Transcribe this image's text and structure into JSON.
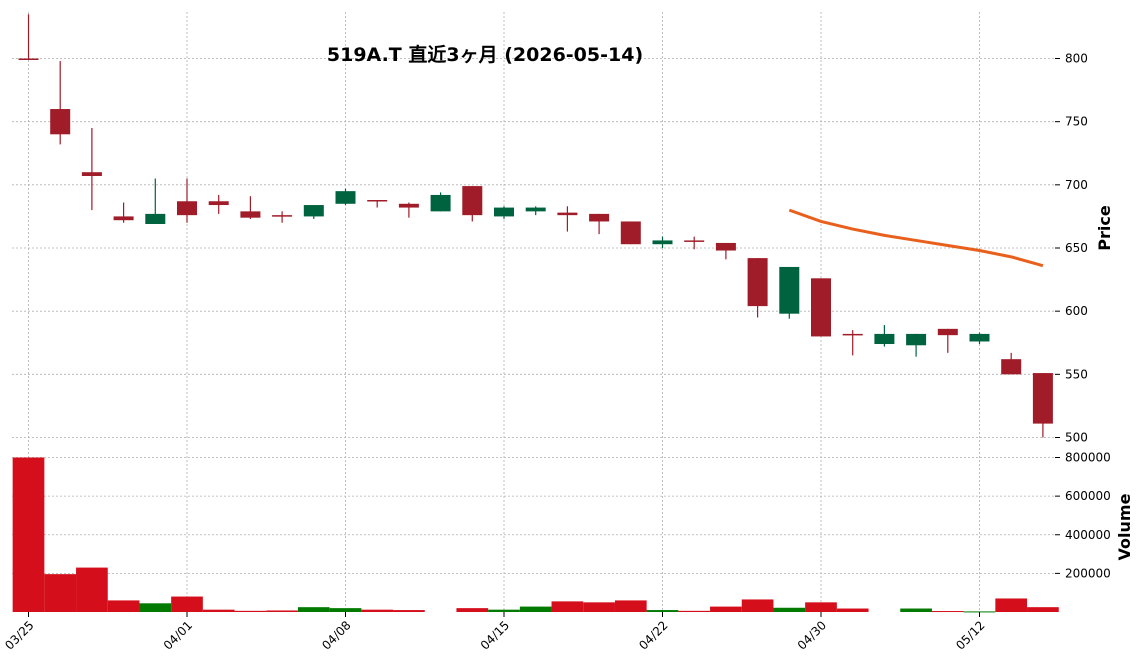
{
  "title": "519A.T 直近3ヶ月 (2026-05-14)",
  "chart_data": {
    "type": "candlestick",
    "title": "519A.T 直近3ヶ月 (2026-05-14)",
    "price_label": "Price",
    "volume_label": "Volume",
    "price_ylim": [
      500,
      838
    ],
    "price_ticks": [
      500,
      550,
      600,
      650,
      700,
      750,
      800
    ],
    "volume_ylim": [
      0,
      890000
    ],
    "volume_ticks": [
      200000,
      400000,
      600000,
      800000
    ],
    "volume_tick_labels": [
      "200000",
      "400000",
      "600000",
      "800000"
    ],
    "x_tick_labels": [
      "03/25",
      "04/01",
      "04/08",
      "04/15",
      "04/22",
      "04/30",
      "05/12"
    ],
    "x_tick_index": [
      0,
      5,
      10,
      15,
      20,
      25,
      30
    ],
    "colors": {
      "up_candle": "#006340",
      "down_candle": "#a01c28",
      "up_volume": "#007a00",
      "down_volume": "#d40f1b",
      "ma_line": "#e8601c"
    },
    "candles": [
      {
        "open": 800,
        "high": 835,
        "low": 800,
        "close": 800,
        "volume": 800000,
        "dir": "down"
      },
      {
        "open": 760,
        "high": 798,
        "low": 732,
        "close": 740,
        "volume": 196000,
        "dir": "down"
      },
      {
        "open": 710,
        "high": 745,
        "low": 680,
        "close": 707,
        "volume": 230000,
        "dir": "down"
      },
      {
        "open": 675,
        "high": 686,
        "low": 670,
        "close": 672,
        "volume": 60000,
        "dir": "down"
      },
      {
        "open": 669,
        "high": 705,
        "low": 669,
        "close": 677,
        "volume": 45000,
        "dir": "up"
      },
      {
        "open": 687,
        "high": 705,
        "low": 670,
        "close": 676,
        "volume": 80000,
        "dir": "down"
      },
      {
        "open": 687,
        "high": 692,
        "low": 677,
        "close": 684,
        "volume": 12000,
        "dir": "down"
      },
      {
        "open": 679,
        "high": 691,
        "low": 673,
        "close": 674,
        "volume": 6000,
        "dir": "down"
      },
      {
        "open": 676,
        "high": 679,
        "low": 670,
        "close": 675,
        "volume": 8000,
        "dir": "down"
      },
      {
        "open": 675,
        "high": 684,
        "low": 673,
        "close": 684,
        "volume": 25000,
        "dir": "up"
      },
      {
        "open": 685,
        "high": 697,
        "low": 684,
        "close": 695,
        "volume": 20000,
        "dir": "up"
      },
      {
        "open": 688,
        "high": 688,
        "low": 682,
        "close": 687,
        "volume": 12000,
        "dir": "down"
      },
      {
        "open": 685,
        "high": 686,
        "low": 674,
        "close": 682,
        "volume": 10000,
        "dir": "down"
      },
      {
        "open": 679,
        "high": 694,
        "low": 679,
        "close": 692,
        "volume": null,
        "dir": "up"
      },
      {
        "open": 699,
        "high": 699,
        "low": 671,
        "close": 676,
        "volume": 20000,
        "dir": "down"
      },
      {
        "open": 675,
        "high": 683,
        "low": 673,
        "close": 682,
        "volume": 12000,
        "dir": "up"
      },
      {
        "open": 679,
        "high": 683,
        "low": 676,
        "close": 682,
        "volume": 28000,
        "dir": "up"
      },
      {
        "open": 678,
        "high": 683,
        "low": 663,
        "close": 676,
        "volume": 55000,
        "dir": "down"
      },
      {
        "open": 677,
        "high": 677,
        "low": 661,
        "close": 671,
        "volume": 50000,
        "dir": "down"
      },
      {
        "open": 671,
        "high": 671,
        "low": 653,
        "close": 653,
        "volume": 60000,
        "dir": "down"
      },
      {
        "open": 653,
        "high": 659,
        "low": 650,
        "close": 656,
        "volume": 10000,
        "dir": "up"
      },
      {
        "open": 656,
        "high": 659,
        "low": 649,
        "close": 655,
        "volume": 6000,
        "dir": "down"
      },
      {
        "open": 654,
        "high": 654,
        "low": 641,
        "close": 648,
        "volume": 28000,
        "dir": "down"
      },
      {
        "open": 642,
        "high": 642,
        "low": 595,
        "close": 604,
        "volume": 65000,
        "dir": "down"
      },
      {
        "open": 598,
        "high": 635,
        "low": 594,
        "close": 635,
        "volume": 22000,
        "dir": "up"
      },
      {
        "open": 626,
        "high": 626,
        "low": 580,
        "close": 580,
        "volume": 50000,
        "dir": "down"
      },
      {
        "open": 582,
        "high": 585,
        "low": 565,
        "close": 582,
        "volume": 18000,
        "dir": "down"
      },
      {
        "open": 574,
        "high": 589,
        "low": 572,
        "close": 582,
        "volume": null,
        "dir": "up"
      },
      {
        "open": 573,
        "high": 582,
        "low": 564,
        "close": 582,
        "volume": 18000,
        "dir": "up"
      },
      {
        "open": 586,
        "high": 586,
        "low": 567,
        "close": 581,
        "volume": 5000,
        "dir": "down"
      },
      {
        "open": 576,
        "high": 583,
        "low": 574,
        "close": 582,
        "volume": 3000,
        "dir": "up"
      },
      {
        "open": 562,
        "high": 567,
        "low": 550,
        "close": 550,
        "volume": 70000,
        "dir": "down"
      },
      {
        "open": 551,
        "high": 551,
        "low": 500,
        "close": 511,
        "volume": 25000,
        "dir": "down"
      }
    ],
    "ma": [
      {
        "index": 24,
        "value": 680
      },
      {
        "index": 25,
        "value": 671
      },
      {
        "index": 26,
        "value": 665
      },
      {
        "index": 27,
        "value": 660
      },
      {
        "index": 28,
        "value": 656
      },
      {
        "index": 29,
        "value": 652
      },
      {
        "index": 30,
        "value": 648
      },
      {
        "index": 31,
        "value": 643
      },
      {
        "index": 32,
        "value": 636
      }
    ],
    "grid": true
  }
}
